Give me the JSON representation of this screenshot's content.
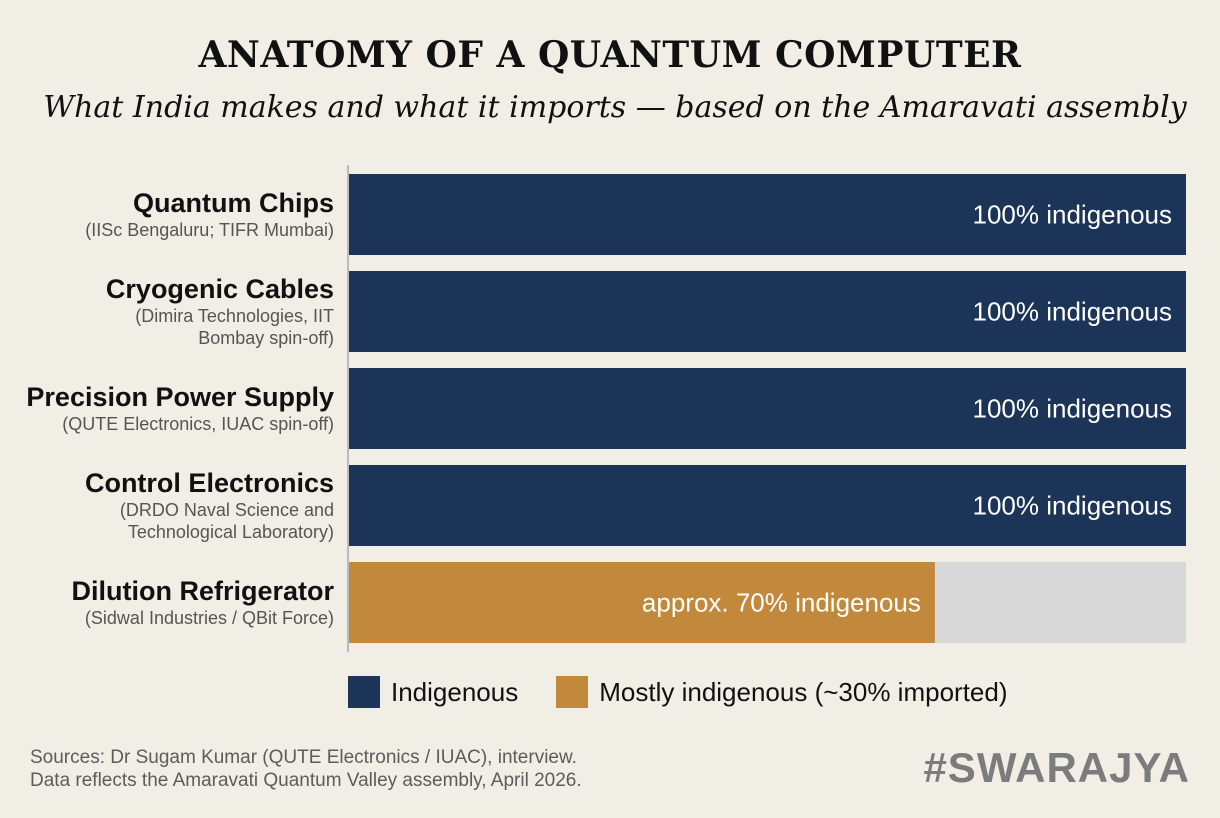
{
  "header": {
    "title": "ANATOMY OF A QUANTUM COMPUTER",
    "subtitle": "What India makes and what it imports — based on the Amaravati assembly"
  },
  "chart_data": {
    "type": "bar",
    "orientation": "horizontal",
    "title": "ANATOMY OF A QUANTUM COMPUTER",
    "subtitle": "What India makes and what it imports — based on the Amaravati assembly",
    "xlim": [
      0,
      100
    ],
    "grid": false,
    "categories": [
      {
        "name": "Quantum Chips",
        "source_lines": [
          "(IISc Bengaluru; TIFR Mumbai)"
        ],
        "value": 100,
        "label": "100% indigenous",
        "status": "Indigenous"
      },
      {
        "name": "Cryogenic Cables",
        "source_lines": [
          "(Dimira Technologies, IIT",
          "Bombay spin-off)"
        ],
        "value": 100,
        "label": "100% indigenous",
        "status": "Indigenous"
      },
      {
        "name": "Precision Power Supply",
        "source_lines": [
          "(QUTE Electronics, IUAC spin-off)"
        ],
        "value": 100,
        "label": "100% indigenous",
        "status": "Indigenous"
      },
      {
        "name": "Control Electronics",
        "source_lines": [
          "(DRDO Naval Science and",
          "Technological Laboratory)"
        ],
        "value": 100,
        "label": "100% indigenous",
        "status": "Indigenous"
      },
      {
        "name": "Dilution Refrigerator",
        "source_lines": [
          "(Sidwal Industries / QBit Force)"
        ],
        "value": 70,
        "label": "approx. 70% indigenous",
        "status": "Mostly indigenous (~30% imported)"
      }
    ],
    "legend": {
      "placement": "bottom",
      "items": [
        {
          "label": "Indigenous",
          "color": "#1b3457"
        },
        {
          "label": "Mostly indigenous (~30% imported)",
          "color": "#c2883c"
        }
      ]
    },
    "colors": {
      "indigenous": "#1b3457",
      "mostly_indigenous": "#c2883c",
      "remainder": "#d8d8d8",
      "axis": "#aaaaaa"
    }
  },
  "footer": {
    "sources": [
      "Sources: Dr Sugam Kumar (QUTE Electronics / IUAC), interview.",
      "Data reflects the Amaravati Quantum Valley assembly, April 2026."
    ],
    "brand": "#SWARAJYA"
  }
}
